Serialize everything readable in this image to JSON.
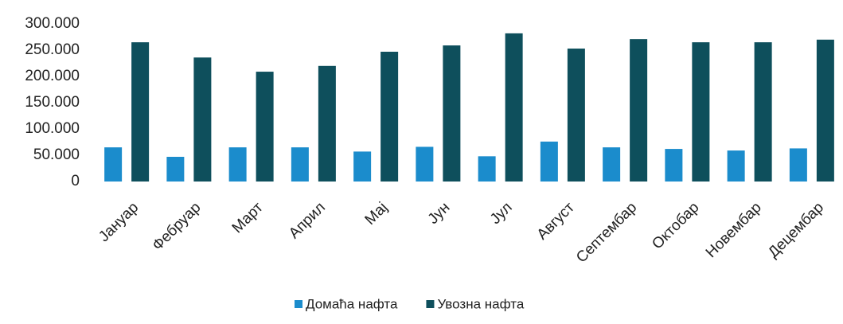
{
  "chart_data": {
    "type": "bar",
    "categories": [
      "Јануар",
      "Фебруар",
      "Март",
      "Април",
      "Мај",
      "Јун",
      "Јул",
      "Август",
      "Септембар",
      "Октобар",
      "Новембар",
      "Децембар"
    ],
    "series": [
      {
        "name": "Домаћа нафта",
        "color": "#1b8ccc",
        "values": [
          65000,
          47000,
          65000,
          65000,
          57000,
          66000,
          48000,
          76000,
          65000,
          62000,
          59000,
          63000
        ]
      },
      {
        "name": "Увозна нафта",
        "color": "#0e4f5c",
        "values": [
          265000,
          236000,
          209000,
          220000,
          247000,
          259000,
          282000,
          253000,
          271000,
          265000,
          265000,
          270000
        ]
      }
    ],
    "ylim": [
      0,
      300000
    ],
    "yticks": [
      0,
      {
        "value": 50000,
        "label": "50.000"
      },
      {
        "value": 100000,
        "label": "100.000"
      },
      {
        "value": 150000,
        "label": "150.000"
      },
      {
        "value": 200000,
        "label": "200.000"
      },
      {
        "value": 250000,
        "label": "250.000"
      },
      {
        "value": 300000,
        "label": "300.000"
      }
    ],
    "grid": false,
    "legend": "bottom"
  }
}
